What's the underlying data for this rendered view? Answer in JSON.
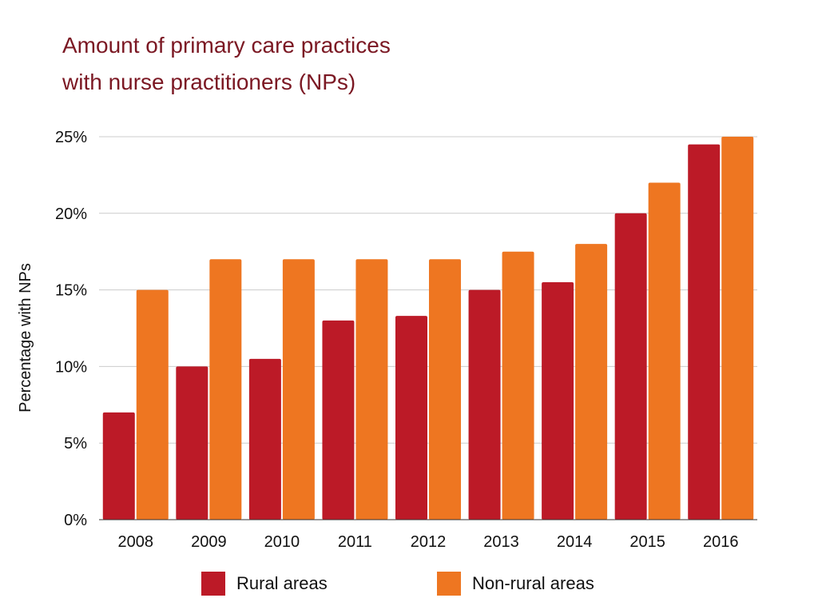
{
  "title_lines": [
    "Amount of primary care practices",
    "with nurse practitioners (NPs)"
  ],
  "chart_data": {
    "type": "bar",
    "title": "Amount of primary care practices with nurse practitioners (NPs)",
    "xlabel": "",
    "ylabel": "Percentage with NPs",
    "categories": [
      "2008",
      "2009",
      "2010",
      "2011",
      "2012",
      "2013",
      "2014",
      "2015",
      "2016"
    ],
    "series": [
      {
        "name": "Rural areas",
        "color": "#bc1a27",
        "values": [
          7,
          10,
          10.5,
          13,
          13.3,
          15,
          15.5,
          20,
          24.5
        ]
      },
      {
        "name": "Non-rural areas",
        "color": "#ee7621",
        "values": [
          15,
          17,
          17,
          17,
          17,
          17.5,
          18,
          22,
          25
        ]
      }
    ],
    "ylim": [
      0,
      25
    ],
    "y_ticks": [
      {
        "value": 0,
        "label": "0%"
      },
      {
        "value": 5,
        "label": "5%"
      },
      {
        "value": 10,
        "label": "10%"
      },
      {
        "value": 15,
        "label": "15%"
      },
      {
        "value": 20,
        "label": "20%"
      },
      {
        "value": 25,
        "label": "25%"
      }
    ],
    "grid": true,
    "legend_position": "bottom"
  },
  "legend": {
    "items": [
      {
        "label": "Rural areas",
        "color": "#bc1a27"
      },
      {
        "label": "Non-rural areas",
        "color": "#ee7621"
      }
    ]
  }
}
